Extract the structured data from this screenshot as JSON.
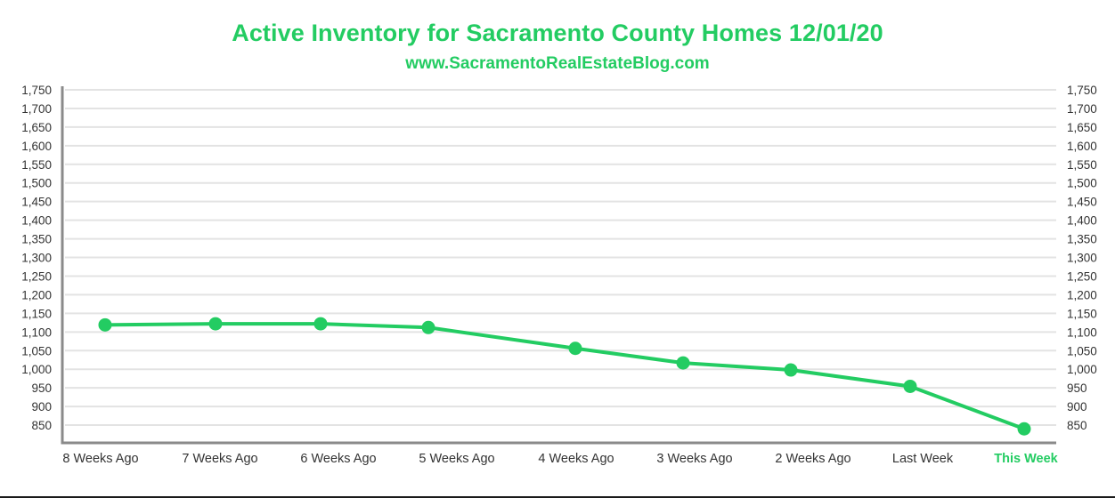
{
  "chart_data": {
    "type": "line",
    "title": "Active Inventory for Sacramento County Homes 12/01/20",
    "subtitle": "www.SacramentoRealEstateBlog.com",
    "xlabel": "",
    "ylabel": "",
    "ylim": [
      800,
      1750
    ],
    "y_ticks": [
      850,
      900,
      950,
      1000,
      1050,
      1100,
      1150,
      1200,
      1250,
      1300,
      1350,
      1400,
      1450,
      1500,
      1550,
      1600,
      1650,
      1700,
      1750
    ],
    "y_tick_labels": [
      "850",
      "900",
      "950",
      "1,000",
      "1,050",
      "1,100",
      "1,150",
      "1,200",
      "1,250",
      "1,300",
      "1,350",
      "1,400",
      "1,450",
      "1,500",
      "1,550",
      "1,600",
      "1,650",
      "1,700",
      "1,750"
    ],
    "y_axis_sides": [
      "left",
      "right"
    ],
    "grid": true,
    "categories": [
      "8 Weeks Ago",
      "7 Weeks Ago",
      "6 Weeks Ago",
      "5 Weeks Ago",
      "4 Weeks Ago",
      "3 Weeks Ago",
      "2 Weeks Ago",
      "Last Week",
      "This Week"
    ],
    "highlighted_category": "This Week",
    "series": [
      {
        "name": "Active Inventory",
        "values": [
          1119,
          1122,
          1122,
          1112,
          1056,
          1017,
          998,
          954,
          840
        ],
        "color": "#23cc62"
      }
    ],
    "colors": {
      "accent": "#23cc62",
      "grid": "#e3e3e3",
      "axis": "#8a8a8a",
      "tick_text": "#333333"
    }
  }
}
